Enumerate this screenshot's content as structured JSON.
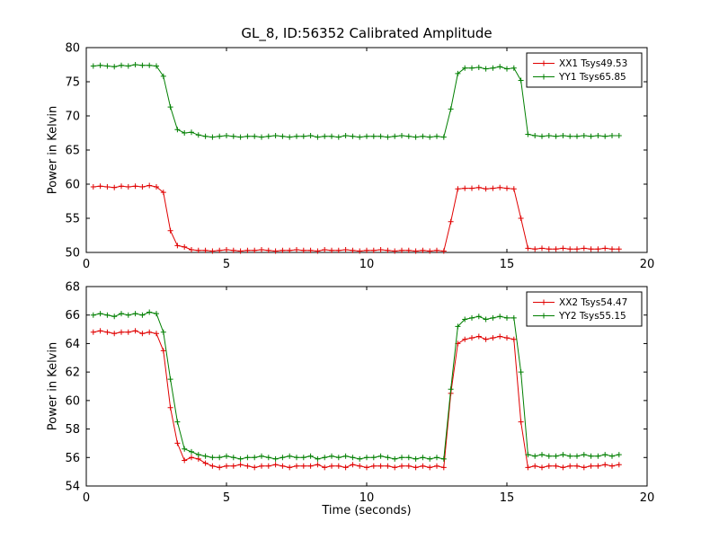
{
  "title": "GL_8, ID:56352 Calibrated Amplitude",
  "colors": {
    "red": "#e00000",
    "green": "#007f00",
    "frame": "#000000",
    "background": "#ffffff"
  },
  "chart_data": [
    {
      "type": "line",
      "subplot": "top",
      "xlabel": "",
      "ylabel": "Power in Kelvin",
      "xlim": [
        0,
        20
      ],
      "ylim": [
        50,
        80
      ],
      "xticks": [
        0,
        5,
        10,
        15,
        20
      ],
      "yticks": [
        50,
        55,
        60,
        65,
        70,
        75,
        80
      ],
      "grid": false,
      "legend_position": "upper right",
      "marker": "plus",
      "x": [
        0.25,
        0.5,
        0.75,
        1.0,
        1.25,
        1.5,
        1.75,
        2.0,
        2.25,
        2.5,
        2.75,
        3.0,
        3.25,
        3.5,
        3.75,
        4.0,
        4.25,
        4.5,
        4.75,
        5.0,
        5.25,
        5.5,
        5.75,
        6.0,
        6.25,
        6.5,
        6.75,
        7.0,
        7.25,
        7.5,
        7.75,
        8.0,
        8.25,
        8.5,
        8.75,
        9.0,
        9.25,
        9.5,
        9.75,
        10.0,
        10.25,
        10.5,
        10.75,
        11.0,
        11.25,
        11.5,
        11.75,
        12.0,
        12.25,
        12.5,
        12.75,
        13.0,
        13.25,
        13.5,
        13.75,
        14.0,
        14.25,
        14.5,
        14.75,
        15.0,
        15.25,
        15.5,
        15.75,
        16.0,
        16.25,
        16.5,
        16.75,
        17.0,
        17.25,
        17.5,
        17.75,
        18.0,
        18.25,
        18.5,
        18.75,
        19.0
      ],
      "series": [
        {
          "name": "XX1 Tsys49.53",
          "color": "red",
          "values": [
            59.6,
            59.7,
            59.6,
            59.5,
            59.7,
            59.6,
            59.7,
            59.6,
            59.8,
            59.6,
            58.8,
            53.2,
            51.0,
            50.8,
            50.4,
            50.3,
            50.3,
            50.2,
            50.3,
            50.4,
            50.3,
            50.2,
            50.3,
            50.3,
            50.4,
            50.3,
            50.2,
            50.3,
            50.3,
            50.4,
            50.3,
            50.3,
            50.2,
            50.4,
            50.3,
            50.3,
            50.4,
            50.3,
            50.2,
            50.3,
            50.3,
            50.4,
            50.3,
            50.2,
            50.3,
            50.3,
            50.2,
            50.3,
            50.2,
            50.3,
            50.2,
            54.5,
            59.3,
            59.4,
            59.4,
            59.5,
            59.3,
            59.4,
            59.5,
            59.4,
            59.3,
            55.0,
            50.6,
            50.5,
            50.6,
            50.5,
            50.5,
            50.6,
            50.5,
            50.5,
            50.6,
            50.5,
            50.5,
            50.6,
            50.5,
            50.5
          ]
        },
        {
          "name": "YY1 Tsys65.85",
          "color": "green",
          "values": [
            77.3,
            77.4,
            77.3,
            77.2,
            77.4,
            77.3,
            77.5,
            77.4,
            77.4,
            77.3,
            75.8,
            71.3,
            68.0,
            67.5,
            67.6,
            67.2,
            67.0,
            66.9,
            67.0,
            67.1,
            67.0,
            66.9,
            67.0,
            67.0,
            66.9,
            67.0,
            67.1,
            67.0,
            66.9,
            67.0,
            67.0,
            67.1,
            66.9,
            67.0,
            67.0,
            66.9,
            67.1,
            67.0,
            66.9,
            67.0,
            67.0,
            67.0,
            66.9,
            67.0,
            67.1,
            67.0,
            66.9,
            67.0,
            66.9,
            67.0,
            66.9,
            71.0,
            76.2,
            77.0,
            77.0,
            77.1,
            76.9,
            77.0,
            77.2,
            76.9,
            77.0,
            75.2,
            67.3,
            67.1,
            67.0,
            67.1,
            67.0,
            67.1,
            67.0,
            67.0,
            67.1,
            67.0,
            67.1,
            67.0,
            67.1,
            67.1
          ]
        }
      ]
    },
    {
      "type": "line",
      "subplot": "bottom",
      "xlabel": "Time (seconds)",
      "ylabel": "Power in Kelvin",
      "xlim": [
        0,
        20
      ],
      "ylim": [
        54,
        68
      ],
      "xticks": [
        0,
        5,
        10,
        15,
        20
      ],
      "yticks": [
        54,
        56,
        58,
        60,
        62,
        64,
        66,
        68
      ],
      "grid": false,
      "legend_position": "upper right",
      "marker": "plus",
      "x": [
        0.25,
        0.5,
        0.75,
        1.0,
        1.25,
        1.5,
        1.75,
        2.0,
        2.25,
        2.5,
        2.75,
        3.0,
        3.25,
        3.5,
        3.75,
        4.0,
        4.25,
        4.5,
        4.75,
        5.0,
        5.25,
        5.5,
        5.75,
        6.0,
        6.25,
        6.5,
        6.75,
        7.0,
        7.25,
        7.5,
        7.75,
        8.0,
        8.25,
        8.5,
        8.75,
        9.0,
        9.25,
        9.5,
        9.75,
        10.0,
        10.25,
        10.5,
        10.75,
        11.0,
        11.25,
        11.5,
        11.75,
        12.0,
        12.25,
        12.5,
        12.75,
        13.0,
        13.25,
        13.5,
        13.75,
        14.0,
        14.25,
        14.5,
        14.75,
        15.0,
        15.25,
        15.5,
        15.75,
        16.0,
        16.25,
        16.5,
        16.75,
        17.0,
        17.25,
        17.5,
        17.75,
        18.0,
        18.25,
        18.5,
        18.75,
        19.0
      ],
      "series": [
        {
          "name": "XX2 Tsys54.47",
          "color": "red",
          "values": [
            64.8,
            64.9,
            64.8,
            64.7,
            64.8,
            64.8,
            64.9,
            64.7,
            64.8,
            64.7,
            63.5,
            59.5,
            57.0,
            55.8,
            56.0,
            55.9,
            55.6,
            55.4,
            55.3,
            55.4,
            55.4,
            55.5,
            55.4,
            55.3,
            55.4,
            55.4,
            55.5,
            55.4,
            55.3,
            55.4,
            55.4,
            55.4,
            55.5,
            55.3,
            55.4,
            55.4,
            55.3,
            55.5,
            55.4,
            55.3,
            55.4,
            55.4,
            55.4,
            55.3,
            55.4,
            55.4,
            55.3,
            55.4,
            55.3,
            55.4,
            55.3,
            60.5,
            64.0,
            64.3,
            64.4,
            64.5,
            64.3,
            64.4,
            64.5,
            64.4,
            64.3,
            58.5,
            55.3,
            55.4,
            55.3,
            55.4,
            55.4,
            55.3,
            55.4,
            55.4,
            55.3,
            55.4,
            55.4,
            55.5,
            55.4,
            55.5
          ]
        },
        {
          "name": "YY2 Tsys55.15",
          "color": "green",
          "values": [
            66.0,
            66.1,
            66.0,
            65.9,
            66.1,
            66.0,
            66.1,
            66.0,
            66.2,
            66.1,
            64.8,
            61.5,
            58.5,
            56.6,
            56.4,
            56.2,
            56.1,
            56.0,
            56.0,
            56.1,
            56.0,
            55.9,
            56.0,
            56.0,
            56.1,
            56.0,
            55.9,
            56.0,
            56.1,
            56.0,
            56.0,
            56.1,
            55.9,
            56.0,
            56.1,
            56.0,
            56.1,
            56.0,
            55.9,
            56.0,
            56.0,
            56.1,
            56.0,
            55.9,
            56.0,
            56.0,
            55.9,
            56.0,
            55.9,
            56.0,
            55.9,
            60.8,
            65.2,
            65.7,
            65.8,
            65.9,
            65.7,
            65.8,
            65.9,
            65.8,
            65.8,
            62.0,
            56.2,
            56.1,
            56.2,
            56.1,
            56.1,
            56.2,
            56.1,
            56.1,
            56.2,
            56.1,
            56.1,
            56.2,
            56.1,
            56.2
          ]
        }
      ]
    }
  ]
}
